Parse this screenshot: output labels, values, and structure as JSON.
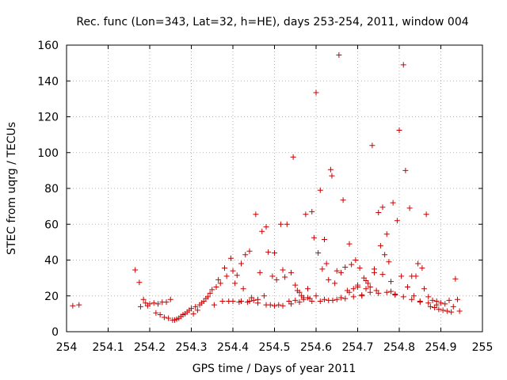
{
  "chart_data": {
    "type": "scatter",
    "title": "Rec. func (Lon=343, Lat=32, h=HE), days 253-254, 2011, window 004",
    "xlabel": "GPS time / Days of year 2011",
    "ylabel": "STEC from uqrg / TECUs",
    "xlim": [
      254,
      255
    ],
    "ylim": [
      0,
      160
    ],
    "xticks": [
      "254",
      "254.1",
      "254.2",
      "254.3",
      "254.4",
      "254.5",
      "254.6",
      "254.7",
      "254.8",
      "254.9",
      "255"
    ],
    "yticks": [
      "0",
      "20",
      "40",
      "60",
      "80",
      "100",
      "120",
      "140",
      "160"
    ],
    "grid": true,
    "marker": "plus",
    "color": "#cc0000",
    "series": [
      {
        "points": [
          [
            254.015,
            14.5
          ],
          [
            254.03,
            15
          ],
          [
            254.165,
            34.5
          ],
          [
            254.175,
            27.5
          ],
          [
            254.178,
            14
          ],
          [
            254.185,
            18
          ],
          [
            254.19,
            16
          ],
          [
            254.195,
            14.5
          ],
          [
            254.2,
            15.5
          ],
          [
            254.21,
            16
          ],
          [
            254.215,
            10.5
          ],
          [
            254.22,
            15.5
          ],
          [
            254.225,
            9.5
          ],
          [
            254.23,
            16.5
          ],
          [
            254.235,
            8
          ],
          [
            254.24,
            16.5
          ],
          [
            254.245,
            7.5
          ],
          [
            254.25,
            18
          ],
          [
            254.255,
            6.5
          ],
          [
            254.26,
            6.5
          ],
          [
            254.265,
            7
          ],
          [
            254.27,
            7.5
          ],
          [
            254.275,
            8.5
          ],
          [
            254.28,
            9.5
          ],
          [
            254.285,
            10
          ],
          [
            254.29,
            11
          ],
          [
            254.295,
            12
          ],
          [
            254.3,
            13
          ],
          [
            254.305,
            10
          ],
          [
            254.31,
            14
          ],
          [
            254.315,
            12
          ],
          [
            254.32,
            15
          ],
          [
            254.325,
            16
          ],
          [
            254.33,
            17
          ],
          [
            254.335,
            18.5
          ],
          [
            254.34,
            19.5
          ],
          [
            254.345,
            21.5
          ],
          [
            254.35,
            23.5
          ],
          [
            254.355,
            15
          ],
          [
            254.36,
            25
          ],
          [
            254.365,
            29
          ],
          [
            254.37,
            27
          ],
          [
            254.375,
            17
          ],
          [
            254.38,
            35.5
          ],
          [
            254.385,
            31
          ],
          [
            254.39,
            17
          ],
          [
            254.395,
            41
          ],
          [
            254.4,
            34
          ],
          [
            254.405,
            27
          ],
          [
            254.41,
            31.5
          ],
          [
            254.415,
            16.5
          ],
          [
            254.42,
            38
          ],
          [
            254.425,
            24
          ],
          [
            254.43,
            43
          ],
          [
            254.435,
            16.5
          ],
          [
            254.44,
            45
          ],
          [
            254.445,
            19
          ],
          [
            254.45,
            17.5
          ],
          [
            254.455,
            65.5
          ],
          [
            254.46,
            18
          ],
          [
            254.465,
            33
          ],
          [
            254.47,
            56
          ],
          [
            254.475,
            20
          ],
          [
            254.48,
            58.5
          ],
          [
            254.485,
            44.5
          ],
          [
            254.49,
            15
          ],
          [
            254.495,
            31
          ],
          [
            254.5,
            44
          ],
          [
            254.505,
            29
          ],
          [
            254.51,
            15
          ],
          [
            254.515,
            60
          ],
          [
            254.52,
            34.5
          ],
          [
            254.525,
            30.5
          ],
          [
            254.53,
            60
          ],
          [
            254.535,
            17
          ],
          [
            254.54,
            33
          ],
          [
            254.545,
            97.5
          ],
          [
            254.55,
            26
          ],
          [
            254.555,
            23
          ],
          [
            254.56,
            22
          ],
          [
            254.565,
            20
          ],
          [
            254.57,
            19
          ],
          [
            254.575,
            65.5
          ],
          [
            254.58,
            24
          ],
          [
            254.585,
            18.5
          ],
          [
            254.59,
            67
          ],
          [
            254.595,
            52.5
          ],
          [
            254.6,
            133.5
          ],
          [
            254.605,
            44
          ],
          [
            254.61,
            79
          ],
          [
            254.615,
            35
          ],
          [
            254.62,
            51.5
          ],
          [
            254.625,
            38
          ],
          [
            254.63,
            29
          ],
          [
            254.635,
            90.5
          ],
          [
            254.638,
            87
          ],
          [
            254.645,
            27
          ],
          [
            254.65,
            34
          ],
          [
            254.655,
            154.5
          ],
          [
            254.66,
            33
          ],
          [
            254.665,
            73.5
          ],
          [
            254.67,
            36
          ],
          [
            254.675,
            23
          ],
          [
            254.68,
            49
          ],
          [
            254.685,
            37.5
          ],
          [
            254.69,
            24
          ],
          [
            254.695,
            40
          ],
          [
            254.7,
            26
          ],
          [
            254.705,
            35.5
          ],
          [
            254.71,
            20
          ],
          [
            254.715,
            30
          ],
          [
            254.72,
            28.5
          ],
          [
            254.725,
            27
          ],
          [
            254.73,
            25
          ],
          [
            254.735,
            104
          ],
          [
            254.74,
            35
          ],
          [
            254.745,
            23
          ],
          [
            254.75,
            66.5
          ],
          [
            254.755,
            48
          ],
          [
            254.76,
            69.5
          ],
          [
            254.765,
            43
          ],
          [
            254.77,
            54.5
          ],
          [
            254.775,
            39
          ],
          [
            254.78,
            22.5
          ],
          [
            254.785,
            72
          ],
          [
            254.79,
            21
          ],
          [
            254.795,
            62
          ],
          [
            254.8,
            112.5
          ],
          [
            254.805,
            31
          ],
          [
            254.81,
            149
          ],
          [
            254.815,
            90
          ],
          [
            254.82,
            25
          ],
          [
            254.825,
            69
          ],
          [
            254.83,
            31
          ],
          [
            254.835,
            20
          ],
          [
            254.84,
            31
          ],
          [
            254.845,
            38
          ],
          [
            254.85,
            16.5
          ],
          [
            254.855,
            35.5
          ],
          [
            254.86,
            24
          ],
          [
            254.865,
            65.5
          ],
          [
            254.87,
            19.5
          ],
          [
            254.875,
            14
          ],
          [
            254.88,
            17.5
          ],
          [
            254.885,
            13.5
          ],
          [
            254.89,
            17
          ],
          [
            254.895,
            12.5
          ],
          [
            254.9,
            16
          ],
          [
            254.905,
            12
          ],
          [
            254.91,
            15.5
          ],
          [
            254.915,
            11.5
          ],
          [
            254.92,
            17.5
          ],
          [
            254.925,
            11
          ],
          [
            254.93,
            14
          ],
          [
            254.935,
            29.5
          ],
          [
            254.94,
            18
          ],
          [
            254.945,
            11.5
          ],
          [
            254.55,
            17.5
          ],
          [
            254.57,
            18
          ],
          [
            254.59,
            17
          ],
          [
            254.61,
            17
          ],
          [
            254.63,
            17.5
          ],
          [
            254.65,
            18
          ],
          [
            254.67,
            18.5
          ],
          [
            254.69,
            19.5
          ],
          [
            254.71,
            20.5
          ],
          [
            254.73,
            22
          ],
          [
            254.75,
            21.5
          ],
          [
            254.77,
            22
          ],
          [
            254.79,
            20.5
          ],
          [
            254.81,
            19.5
          ],
          [
            254.83,
            18
          ],
          [
            254.85,
            17
          ],
          [
            254.87,
            16
          ],
          [
            254.89,
            15
          ],
          [
            254.4,
            17
          ],
          [
            254.42,
            17
          ],
          [
            254.44,
            17
          ],
          [
            254.46,
            16
          ],
          [
            254.48,
            15
          ],
          [
            254.5,
            14.5
          ],
          [
            254.52,
            14.5
          ],
          [
            254.54,
            15.5
          ],
          [
            254.56,
            16.5
          ],
          [
            254.58,
            19
          ],
          [
            254.6,
            20
          ],
          [
            254.62,
            18
          ],
          [
            254.64,
            17.5
          ],
          [
            254.66,
            19
          ],
          [
            254.68,
            22
          ],
          [
            254.7,
            25
          ],
          [
            254.72,
            24
          ],
          [
            254.74,
            33
          ],
          [
            254.76,
            32
          ],
          [
            254.78,
            28
          ]
        ]
      }
    ]
  }
}
